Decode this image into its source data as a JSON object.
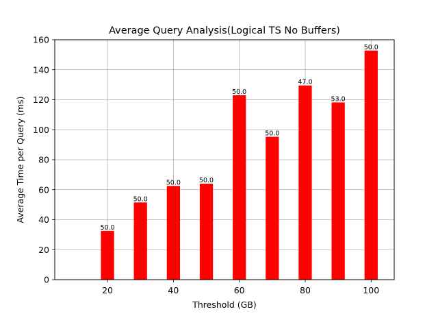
{
  "chart_data": {
    "type": "bar",
    "title": "Average Query Analysis(Logical TS No Buffers)",
    "xlabel": "Threshold (GB)",
    "ylabel": "Average Time per Query (ms)",
    "x": [
      20,
      30,
      40,
      50,
      60,
      70,
      80,
      90,
      100
    ],
    "values": [
      32.5,
      51.5,
      62.5,
      64.0,
      123.0,
      95.3,
      129.5,
      118.2,
      152.8
    ],
    "bar_labels": [
      "50.0",
      "50.0",
      "50.0",
      "50.0",
      "50.0",
      "50.0",
      "47.0",
      "53.0",
      "50.0"
    ],
    "xlim": [
      4,
      107
    ],
    "ylim": [
      0,
      160
    ],
    "xticks": [
      20,
      40,
      60,
      80,
      100
    ],
    "yticks": [
      0,
      20,
      40,
      60,
      80,
      100,
      120,
      140,
      160
    ],
    "bar_width": 4,
    "bar_color": "#ff0000",
    "grid": true
  }
}
